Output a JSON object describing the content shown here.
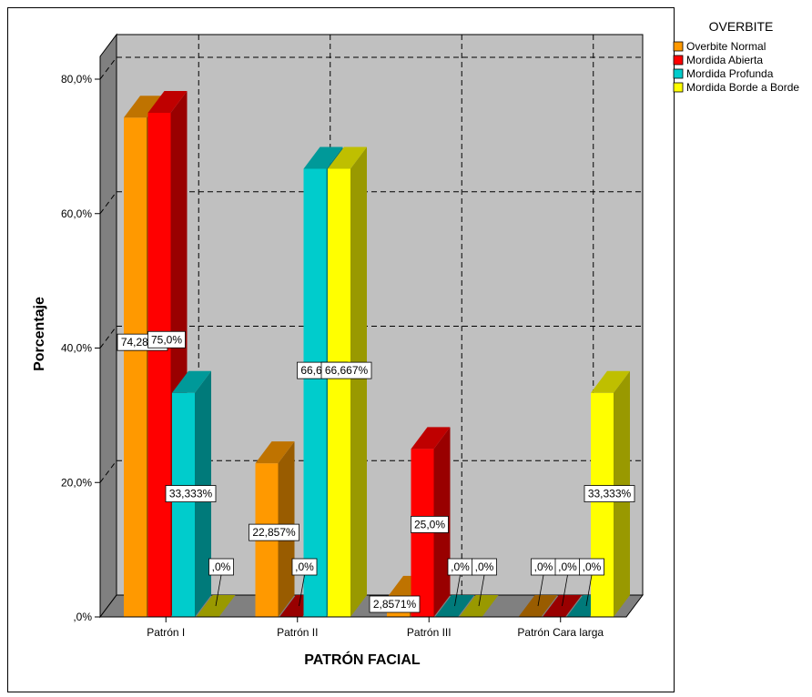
{
  "chart_data": {
    "type": "bar",
    "title": "",
    "xlabel": "PATRÓN FACIAL",
    "ylabel": "Porcentaje",
    "ylim": [
      0,
      80
    ],
    "yticks": [
      0,
      20,
      40,
      60,
      80
    ],
    "ytick_labels": [
      ",0%",
      "20,0%",
      "40,0%",
      "60,0%",
      "80,0%"
    ],
    "grid": true,
    "three_d": true,
    "legend_position": "top-right",
    "legend_title": "OVERBITE",
    "categories": [
      "Patrón I",
      "Patrón II",
      "Patrón III",
      "Patrón Cara larga"
    ],
    "series": [
      {
        "name": "Overbite Normal",
        "color": "#ff9900",
        "values": [
          74.286,
          22.857,
          2.8571,
          0
        ],
        "labels": [
          "74,286%",
          "22,857%",
          "2,8571%",
          ",0%"
        ]
      },
      {
        "name": "Mordida Abierta",
        "color": "#ff0000",
        "values": [
          75.0,
          0,
          25.0,
          0
        ],
        "labels": [
          "75,0%",
          ",0%",
          "25,0%",
          ",0%"
        ]
      },
      {
        "name": "Mordida Profunda",
        "color": "#00cccc",
        "values": [
          33.333,
          66.667,
          0,
          0
        ],
        "labels": [
          "33,333%",
          "66,667%",
          ",0%",
          ",0%"
        ]
      },
      {
        "name": "Mordida Borde a Borde",
        "color": "#ffff00",
        "values": [
          0,
          66.667,
          0,
          33.333
        ],
        "labels": [
          ",0%",
          "66,667%",
          ",0%",
          "33,333%"
        ]
      }
    ]
  }
}
